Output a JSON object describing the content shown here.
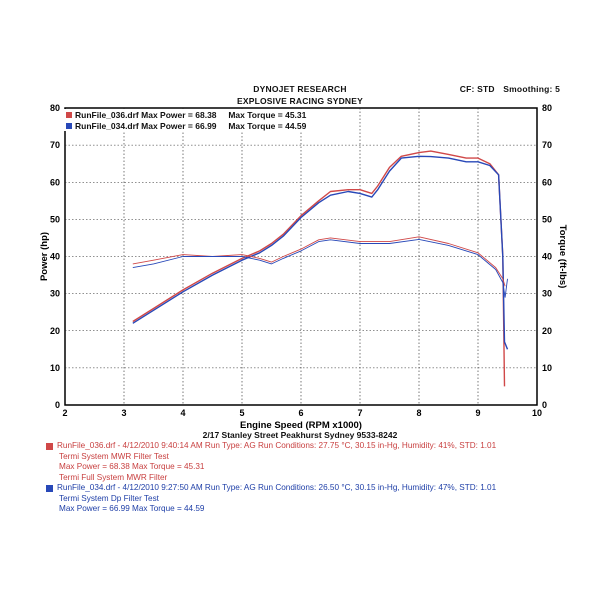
{
  "header": {
    "title_line1": "DYNOJET RESEARCH",
    "title_line2": "EXPLOSIVE RACING SYDNEY",
    "cf": "CF: STD",
    "smoothing": "Smoothing: 5"
  },
  "legend": [
    {
      "run": "RunFile_036.drf",
      "power": "Max Power = 68.38",
      "torque": "Max Torque = 45.31",
      "color": "#d04848"
    },
    {
      "run": "RunFile_034.drf",
      "power": "Max Power = 66.99",
      "torque": "Max Torque = 44.59",
      "color": "#2848b8"
    }
  ],
  "address": "2/17 Stanley Street Peakhurst Sydney 9533-8242",
  "footer": [
    {
      "color": "#d04848",
      "line1": "RunFile_036.drf - 4/12/2010 9:40:14 AM  Run Type: AG  Run Conditions: 27.75 °C, 30.15 in-Hg,  Humidity:  41%, STD: 1.01",
      "line2": "Termi System MWR Filter Test",
      "line3": "Max Power = 68.38  Max Torque = 45.31",
      "line4": "Termi Full System MWR Filter"
    },
    {
      "color": "#2848b8",
      "line1": "RunFile_034.drf - 4/12/2010 9:27:50 AM  Run Type: AG  Run Conditions: 26.50 °C, 30.15 in-Hg,  Humidity:  47%, STD: 1.01",
      "line2": "Termi System Dp Filter Test",
      "line3": "Max Power = 66.99  Max Torque = 44.59"
    }
  ],
  "chart_data": {
    "type": "line",
    "xlabel": "Engine Speed (RPM x1000)",
    "ylabel_left": "Power (hp)",
    "ylabel_right": "Torque (ft-lbs)",
    "xlim": [
      2,
      10
    ],
    "ylim_left": [
      0,
      80
    ],
    "ylim_right": [
      0,
      80
    ],
    "xticks": [
      2,
      3,
      4,
      5,
      6,
      7,
      8,
      9,
      10
    ],
    "yticks": [
      0,
      10,
      20,
      30,
      40,
      50,
      60,
      70,
      80
    ],
    "grid": true,
    "legend_position": "top-left",
    "series": [
      {
        "name": "RunFile_036.drf Power",
        "axis": "left",
        "color": "#d04848",
        "x": [
          3.15,
          3.5,
          4.0,
          4.5,
          5.0,
          5.3,
          5.5,
          5.7,
          6.0,
          6.3,
          6.5,
          6.8,
          7.0,
          7.2,
          7.3,
          7.5,
          7.7,
          8.0,
          8.2,
          8.5,
          8.8,
          9.0,
          9.2,
          9.35,
          9.42,
          9.45
        ],
        "y": [
          22.5,
          26,
          31,
          35.5,
          39.5,
          41.5,
          43.5,
          46,
          51,
          55,
          57.5,
          58,
          58,
          57,
          59,
          64,
          67,
          68,
          68.4,
          67.5,
          66.5,
          66.5,
          65,
          62,
          40,
          5
        ]
      },
      {
        "name": "RunFile_034.drf Power",
        "axis": "left",
        "color": "#2848b8",
        "x": [
          3.15,
          3.5,
          4.0,
          4.5,
          5.0,
          5.3,
          5.5,
          5.7,
          6.0,
          6.3,
          6.5,
          6.8,
          7.0,
          7.2,
          7.3,
          7.5,
          7.7,
          8.0,
          8.2,
          8.5,
          8.8,
          9.0,
          9.2,
          9.35,
          9.42,
          9.45,
          9.5
        ],
        "y": [
          22,
          25.5,
          30.5,
          35,
          39,
          41,
          43,
          45.5,
          50.5,
          54.5,
          56.5,
          57.5,
          57,
          56,
          58,
          63,
          66.5,
          67,
          66.9,
          66.5,
          65.5,
          65.5,
          64.5,
          62,
          40,
          17,
          15
        ]
      },
      {
        "name": "RunFile_036.drf Torque",
        "axis": "right",
        "color": "#d04848",
        "x": [
          3.15,
          3.5,
          4.0,
          4.5,
          5.0,
          5.3,
          5.5,
          5.7,
          6.0,
          6.3,
          6.5,
          7.0,
          7.5,
          8.0,
          8.5,
          9.0,
          9.3,
          9.42,
          9.46
        ],
        "y": [
          38,
          39,
          40.5,
          40,
          40.5,
          39.5,
          38.5,
          40,
          42,
          44.5,
          45,
          44,
          44,
          45.3,
          43.5,
          41,
          37,
          34,
          32
        ]
      },
      {
        "name": "RunFile_034.drf Torque",
        "axis": "right",
        "color": "#2848b8",
        "x": [
          3.15,
          3.5,
          4.0,
          4.5,
          5.0,
          5.3,
          5.5,
          5.7,
          6.0,
          6.3,
          6.5,
          7.0,
          7.5,
          8.0,
          8.5,
          9.0,
          9.3,
          9.42,
          9.46,
          9.5
        ],
        "y": [
          37,
          38,
          40,
          40,
          40,
          39,
          38,
          39.5,
          41.5,
          44,
          44.5,
          43.5,
          43.5,
          44.6,
          43,
          40.5,
          36.5,
          33,
          29,
          34
        ]
      }
    ]
  }
}
